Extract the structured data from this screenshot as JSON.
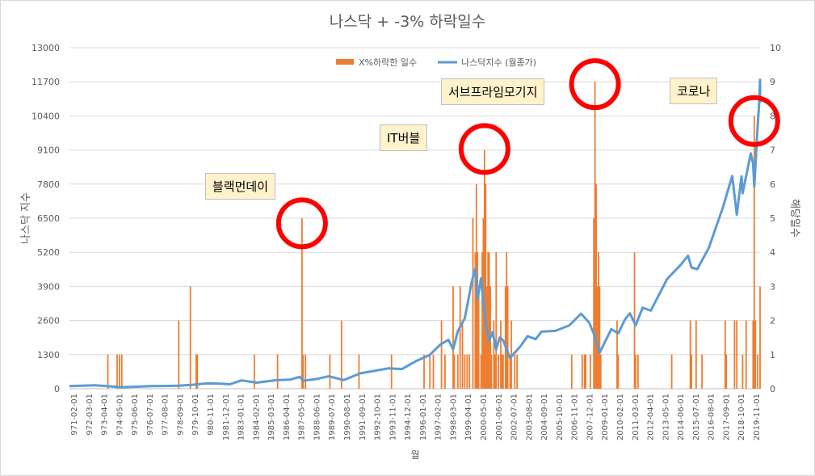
{
  "chart_data": {
    "type": "bar+line",
    "title": "나스닥 + -3% 하락일수",
    "xlabel": "월",
    "ylabel_left": "나스닥 지수",
    "ylabel_right": "해당일수",
    "y_left_ticks": [
      0,
      1300,
      2600,
      3900,
      5200,
      6500,
      7800,
      9100,
      10400,
      11700,
      13000
    ],
    "y_left_range": [
      0,
      13000
    ],
    "y_right_ticks": [
      0,
      1,
      2,
      3,
      4,
      5,
      6,
      7,
      8,
      9,
      10
    ],
    "y_right_range": [
      0,
      10
    ],
    "x_range": [
      "1971-02",
      "2020-08"
    ],
    "x_tick_labels": [
      "971-02-01",
      "972-03-01",
      "973-04-01",
      "974-05-01",
      "975-06-01",
      "976-07-01",
      "977-08-01",
      "978-09-01",
      "979-10-01",
      "980-11-01",
      "1981-12-01",
      "1983-01-01",
      "1984-02-01",
      "1985-03-01",
      "1986-04-01",
      "1987-05-01",
      "1988-06-01",
      "1989-07-01",
      "1990-08-01",
      "1991-09-01",
      "1992-10-01",
      "1993-11-01",
      "1994-12-01",
      "1996-01-01",
      "1997-02-01",
      "1998-03-01",
      "1999-04-01",
      "2000-05-01",
      "2001-06-01",
      "2002-07-01",
      "2003-08-01",
      "2004-09-01",
      "2005-10-01",
      "2006-11-01",
      "2007-12-01",
      "2009-01-01",
      "2010-02-01",
      "2011-03-01",
      "2012-04-01",
      "2013-05-01",
      "2014-06-01",
      "2015-07-01",
      "2016-08-01",
      "2017-09-01",
      "2018-10-01",
      "2019-11-01"
    ],
    "grid": "horizontal",
    "legend_position": "top",
    "series": [
      {
        "name": "X%하락한 일수",
        "type": "bar",
        "axis": "right",
        "color": "#ed7d31",
        "points": [
          [
            "1973-11",
            1
          ],
          [
            "1974-07",
            1
          ],
          [
            "1974-09",
            1
          ],
          [
            "1974-11",
            1
          ],
          [
            "1978-12",
            2
          ],
          [
            "1979-10",
            3
          ],
          [
            "1980-03",
            1
          ],
          [
            "1980-04",
            1
          ],
          [
            "1984-05",
            1
          ],
          [
            "1986-01",
            1
          ],
          [
            "1987-10",
            5
          ],
          [
            "1987-11",
            1
          ],
          [
            "1988-01",
            1
          ],
          [
            "1989-10",
            1
          ],
          [
            "1990-08",
            2
          ],
          [
            "1991-11",
            1
          ],
          [
            "1994-03",
            1
          ],
          [
            "1996-07",
            1
          ],
          [
            "1996-12",
            1
          ],
          [
            "1997-03",
            1
          ],
          [
            "1997-10",
            2
          ],
          [
            "1998-01",
            1
          ],
          [
            "1998-08",
            3
          ],
          [
            "1998-09",
            1
          ],
          [
            "1998-12",
            1
          ],
          [
            "1999-02",
            3
          ],
          [
            "1999-04",
            2
          ],
          [
            "1999-06",
            1
          ],
          [
            "1999-08",
            1
          ],
          [
            "1999-10",
            1
          ],
          [
            "2000-01",
            5
          ],
          [
            "2000-03",
            4
          ],
          [
            "2000-04",
            6
          ],
          [
            "2000-05",
            4
          ],
          [
            "2000-06",
            3
          ],
          [
            "2000-08",
            1
          ],
          [
            "2000-09",
            4
          ],
          [
            "2000-10",
            5
          ],
          [
            "2000-11",
            7
          ],
          [
            "2000-12",
            6
          ],
          [
            "2001-01",
            3
          ],
          [
            "2001-02",
            4
          ],
          [
            "2001-03",
            4
          ],
          [
            "2001-04",
            3
          ],
          [
            "2001-05",
            1
          ],
          [
            "2001-07",
            2
          ],
          [
            "2001-08",
            1
          ],
          [
            "2001-09",
            4
          ],
          [
            "2001-11",
            1
          ],
          [
            "2002-01",
            2
          ],
          [
            "2002-02",
            1
          ],
          [
            "2002-03",
            1
          ],
          [
            "2002-05",
            3
          ],
          [
            "2002-06",
            4
          ],
          [
            "2002-07",
            3
          ],
          [
            "2002-09",
            1
          ],
          [
            "2002-10",
            2
          ],
          [
            "2003-01",
            1
          ],
          [
            "2003-03",
            1
          ],
          [
            "2007-02",
            1
          ],
          [
            "2007-11",
            1
          ],
          [
            "2008-01",
            1
          ],
          [
            "2008-02",
            1
          ],
          [
            "2008-06",
            1
          ],
          [
            "2008-09",
            5
          ],
          [
            "2008-10",
            9
          ],
          [
            "2008-11",
            6
          ],
          [
            "2008-12",
            3
          ],
          [
            "2009-01",
            4
          ],
          [
            "2009-02",
            3
          ],
          [
            "2009-03",
            1
          ],
          [
            "2010-05",
            2
          ],
          [
            "2010-06",
            1
          ],
          [
            "2011-08",
            4
          ],
          [
            "2011-09",
            1
          ],
          [
            "2011-11",
            1
          ],
          [
            "2014-04",
            1
          ],
          [
            "2015-08",
            2
          ],
          [
            "2015-09",
            1
          ],
          [
            "2016-01",
            2
          ],
          [
            "2016-06",
            1
          ],
          [
            "2018-02",
            2
          ],
          [
            "2018-03",
            1
          ],
          [
            "2018-10",
            2
          ],
          [
            "2018-12",
            2
          ],
          [
            "2019-05",
            1
          ],
          [
            "2019-08",
            2
          ],
          [
            "2020-02",
            2
          ],
          [
            "2020-03",
            8
          ],
          [
            "2020-04",
            2
          ],
          [
            "2020-06",
            1
          ],
          [
            "2020-08",
            3
          ]
        ]
      },
      {
        "name": "나스닥지수 (월종가)",
        "type": "line",
        "axis": "left",
        "color": "#5b9bd5",
        "points": [
          [
            "1971-02",
            100
          ],
          [
            "1972-12",
            133
          ],
          [
            "1973-12",
            92
          ],
          [
            "1974-10",
            60
          ],
          [
            "1975-12",
            78
          ],
          [
            "1976-12",
            98
          ],
          [
            "1977-12",
            105
          ],
          [
            "1978-12",
            118
          ],
          [
            "1979-12",
            151
          ],
          [
            "1980-12",
            202
          ],
          [
            "1981-12",
            195
          ],
          [
            "1982-08",
            170
          ],
          [
            "1983-06",
            318
          ],
          [
            "1984-07",
            230
          ],
          [
            "1985-12",
            325
          ],
          [
            "1986-12",
            349
          ],
          [
            "1987-08",
            454
          ],
          [
            "1987-11",
            305
          ],
          [
            "1988-12",
            381
          ],
          [
            "1989-09",
            473
          ],
          [
            "1990-10",
            329
          ],
          [
            "1991-12",
            586
          ],
          [
            "1992-12",
            677
          ],
          [
            "1993-12",
            777
          ],
          [
            "1994-12",
            752
          ],
          [
            "1995-12",
            1052
          ],
          [
            "1996-12",
            1291
          ],
          [
            "1997-09",
            1686
          ],
          [
            "1998-04",
            1868
          ],
          [
            "1998-08",
            1499
          ],
          [
            "1998-12",
            2193
          ],
          [
            "1999-06",
            2686
          ],
          [
            "1999-12",
            4069
          ],
          [
            "2000-03",
            4573
          ],
          [
            "2000-05",
            3400
          ],
          [
            "2000-08",
            4206
          ],
          [
            "2000-12",
            2470
          ],
          [
            "2001-03",
            1840
          ],
          [
            "2001-06",
            2160
          ],
          [
            "2001-09",
            1498
          ],
          [
            "2001-12",
            1950
          ],
          [
            "2002-03",
            1845
          ],
          [
            "2002-09",
            1172
          ],
          [
            "2003-06",
            1622
          ],
          [
            "2003-12",
            2003
          ],
          [
            "2004-07",
            1887
          ],
          [
            "2004-12",
            2175
          ],
          [
            "2005-12",
            2205
          ],
          [
            "2006-12",
            2415
          ],
          [
            "2007-10",
            2859
          ],
          [
            "2008-05",
            2522
          ],
          [
            "2008-09",
            2091
          ],
          [
            "2009-02",
            1377
          ],
          [
            "2009-12",
            2269
          ],
          [
            "2010-06",
            2109
          ],
          [
            "2010-12",
            2653
          ],
          [
            "2011-04",
            2873
          ],
          [
            "2011-09",
            2415
          ],
          [
            "2012-03",
            3091
          ],
          [
            "2012-10",
            2977
          ],
          [
            "2013-12",
            4177
          ],
          [
            "2014-12",
            4736
          ],
          [
            "2015-06",
            5070
          ],
          [
            "2015-09",
            4620
          ],
          [
            "2016-02",
            4558
          ],
          [
            "2016-12",
            5383
          ],
          [
            "2017-12",
            6903
          ],
          [
            "2018-08",
            8109
          ],
          [
            "2018-12",
            6635
          ],
          [
            "2019-04",
            8095
          ],
          [
            "2019-05",
            7453
          ],
          [
            "2019-12",
            8972
          ],
          [
            "2020-02",
            8567
          ],
          [
            "2020-03",
            7700
          ],
          [
            "2020-06",
            10058
          ],
          [
            "2020-07",
            10745
          ],
          [
            "2020-08",
            11775
          ],
          [
            "2020-08",
            10900
          ]
        ]
      }
    ],
    "annotations": [
      {
        "text": "블랙먼데이",
        "at": "1987-10"
      },
      {
        "text": "IT버블",
        "at": "2000-11"
      },
      {
        "text": "서브프라임모기지",
        "at": "2008-10"
      },
      {
        "text": "코로나",
        "at": "2020-03"
      }
    ]
  }
}
